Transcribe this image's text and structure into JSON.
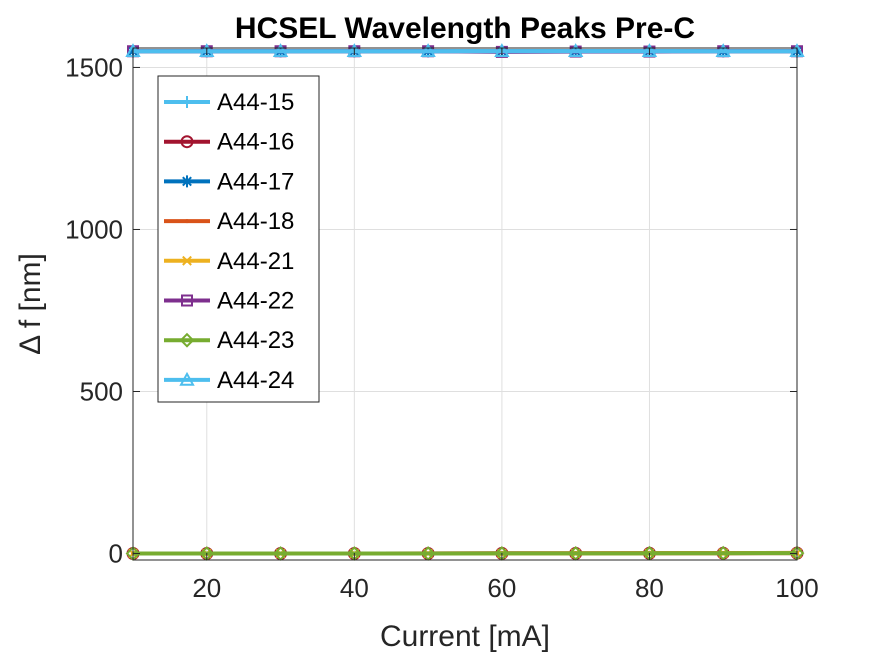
{
  "chart_data": {
    "type": "line",
    "title": "HCSEL Wavelength Peaks Pre-C",
    "xlabel": "Current [mA]",
    "ylabel": "Δ f [nm]",
    "xlim": [
      10,
      100
    ],
    "ylim": [
      -20,
      1560
    ],
    "xticks": [
      20,
      40,
      60,
      80,
      100
    ],
    "yticks": [
      0,
      500,
      1000,
      1500
    ],
    "xtick_labels": [
      "20",
      "40",
      "60",
      "80",
      "100"
    ],
    "ytick_labels": [
      "0",
      "500",
      "1000",
      "1500"
    ],
    "grid": true,
    "legend_position": "top-left",
    "x": [
      10,
      20,
      30,
      40,
      50,
      60,
      70,
      80,
      90,
      100
    ],
    "series": [
      {
        "name": "A44-15",
        "color": "#4DBEEE",
        "marker": "plus",
        "values": [
          1550,
          1550,
          1550,
          1550,
          1550,
          1550,
          1550,
          1550,
          1550,
          1550
        ]
      },
      {
        "name": "A44-16",
        "color": "#A2142F",
        "marker": "circle",
        "values": [
          0,
          0,
          0,
          0,
          0,
          0.5,
          0.5,
          0.8,
          1,
          1.2
        ]
      },
      {
        "name": "A44-17",
        "color": "#0072BD",
        "marker": "asterisk",
        "values": [
          1550,
          1550,
          1550,
          1550,
          1550,
          1550,
          1550,
          1550,
          1550,
          1550
        ]
      },
      {
        "name": "A44-18",
        "color": "#D95319",
        "marker": "dot",
        "values": [
          0,
          0,
          0,
          0,
          0.3,
          0.6,
          0.9,
          1.2,
          1.5,
          1.8
        ]
      },
      {
        "name": "A44-21",
        "color": "#EDB120",
        "marker": "x",
        "values": [
          0,
          0,
          0,
          0,
          0,
          0,
          0.5,
          0.8,
          1,
          1.2
        ]
      },
      {
        "name": "A44-22",
        "color": "#7E2F8E",
        "marker": "square",
        "values": [
          1550,
          1550,
          1550,
          1550,
          1550,
          1548,
          1549,
          1549,
          1550,
          1550
        ]
      },
      {
        "name": "A44-23",
        "color": "#77AC30",
        "marker": "diamond",
        "values": [
          0,
          0,
          0,
          0,
          0,
          0.3,
          0.5,
          0.8,
          1,
          1.2
        ]
      },
      {
        "name": "A44-24",
        "color": "#4DBEEE",
        "marker": "triangle",
        "values": [
          1550,
          1550,
          1550,
          1550,
          1550,
          1550,
          1550,
          1550,
          1550,
          1550
        ]
      }
    ]
  }
}
